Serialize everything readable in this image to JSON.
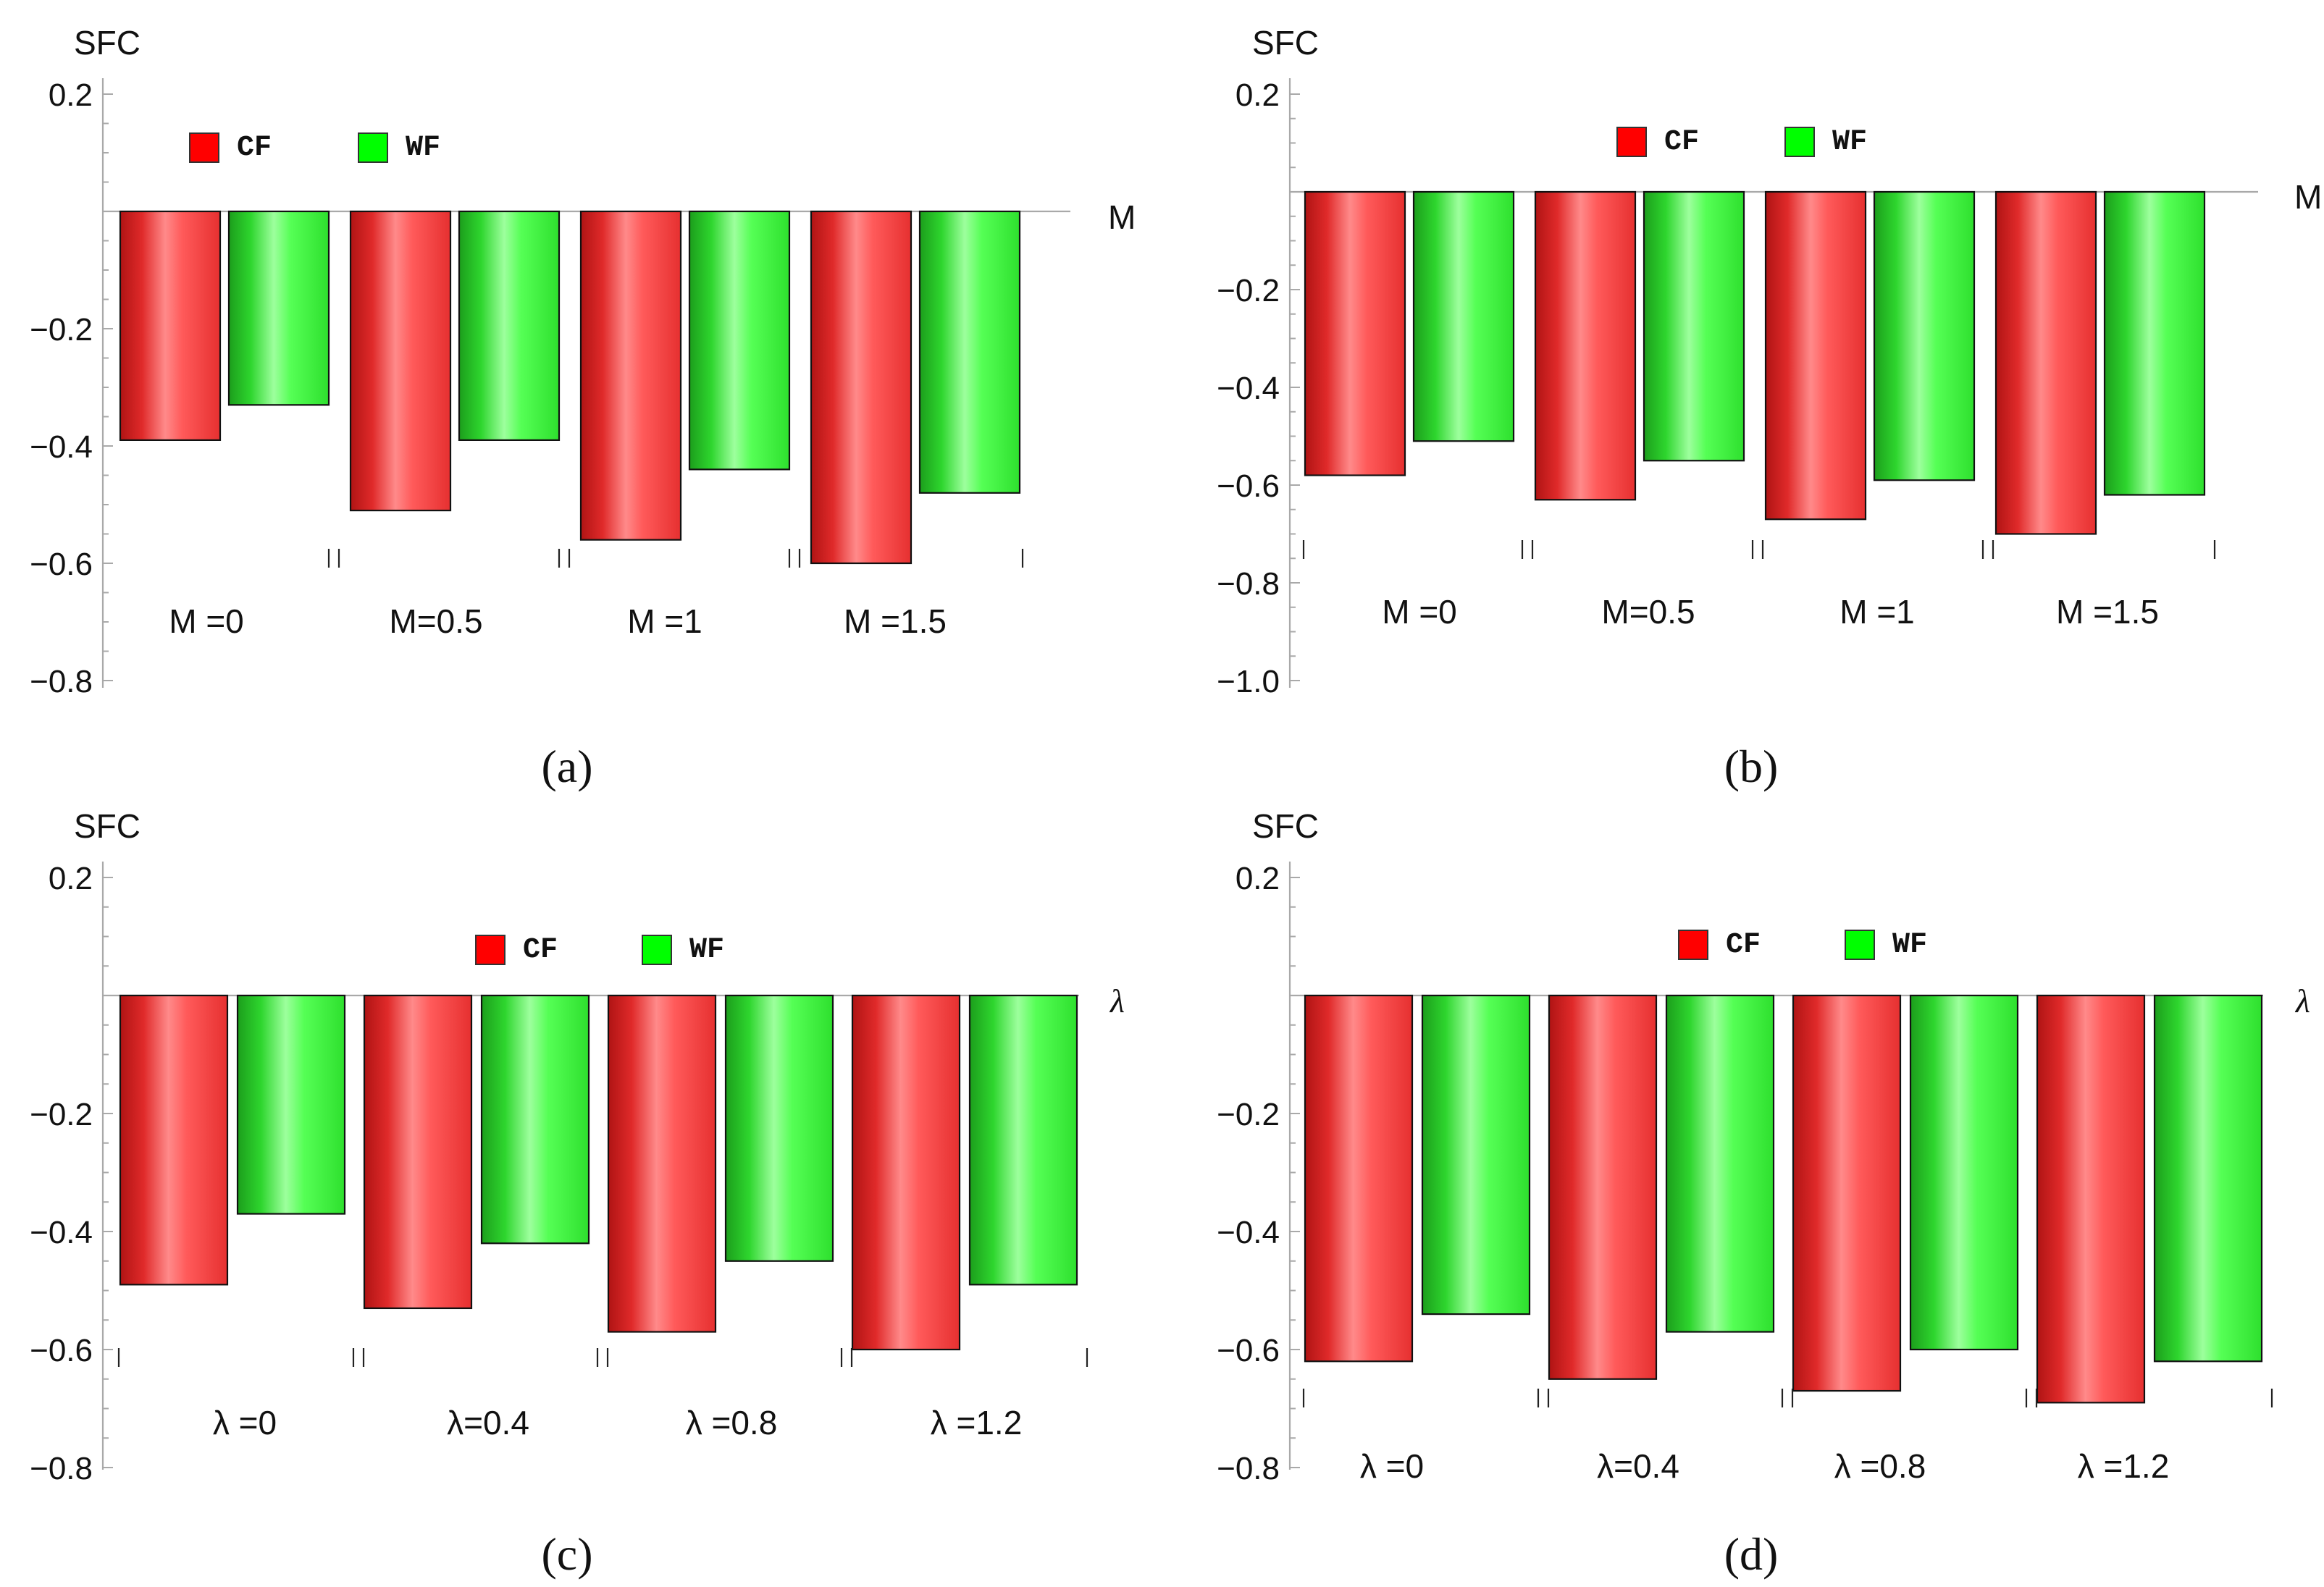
{
  "colors": {
    "cf": "#ff0000",
    "wf": "#00ff00",
    "cf_dark": "#b01414",
    "cf_light": "#ff9a9a",
    "wf_dark": "#1c9e1c",
    "wf_light": "#9dff9d",
    "axis": "#a9a9a9"
  },
  "legend": {
    "cf": "CF",
    "wf": "WF"
  },
  "chart_data": [
    {
      "id": "a",
      "type": "bar",
      "caption": "(a)",
      "ylabel": "SFC",
      "xlabel": "M",
      "ylim": [
        -0.85,
        0.22
      ],
      "yticks": [
        0.2,
        -0.2,
        -0.4,
        -0.6,
        -0.8
      ],
      "ytick_labels": [
        "0.2",
        "−0.2",
        "−0.4",
        "−0.6",
        "−0.8"
      ],
      "categories": [
        "M =0",
        "M=0.5",
        "M =1",
        "M =1.5"
      ],
      "series": [
        {
          "name": "CF",
          "values": [
            -0.39,
            -0.51,
            -0.56,
            -0.6
          ]
        },
        {
          "name": "WF",
          "values": [
            -0.33,
            -0.39,
            -0.44,
            -0.48
          ]
        }
      ]
    },
    {
      "id": "b",
      "type": "bar",
      "caption": "(b)",
      "ylabel": "SFC",
      "xlabel": "M",
      "ylim": [
        -1.03,
        0.22
      ],
      "yticks": [
        0.2,
        -0.2,
        -0.4,
        -0.6,
        -0.8,
        -1.0
      ],
      "ytick_labels": [
        "0.2",
        "−0.2",
        "−0.4",
        "−0.6",
        "−0.8",
        "−1.0"
      ],
      "categories": [
        "M =0",
        "M=0.5",
        "M =1",
        "M =1.5"
      ],
      "series": [
        {
          "name": "CF",
          "values": [
            -0.58,
            -0.63,
            -0.67,
            -0.7
          ]
        },
        {
          "name": "WF",
          "values": [
            -0.51,
            -0.55,
            -0.59,
            -0.62
          ]
        }
      ]
    },
    {
      "id": "c",
      "type": "bar",
      "caption": "(c)",
      "ylabel": "SFC",
      "xlabel": "λ",
      "ylim": [
        -0.85,
        0.22
      ],
      "yticks": [
        0.2,
        -0.2,
        -0.4,
        -0.6,
        -0.8
      ],
      "ytick_labels": [
        "0.2",
        "−0.2",
        "−0.4",
        "−0.6",
        "−0.8"
      ],
      "categories": [
        "λ =0",
        "λ=0.4",
        "λ =0.8",
        "λ =1.2"
      ],
      "series": [
        {
          "name": "CF",
          "values": [
            -0.49,
            -0.53,
            -0.57,
            -0.6
          ]
        },
        {
          "name": "WF",
          "values": [
            -0.37,
            -0.42,
            -0.45,
            -0.49
          ]
        }
      ]
    },
    {
      "id": "d",
      "type": "bar",
      "caption": "(d)",
      "ylabel": "SFC",
      "xlabel": "λ",
      "ylim": [
        -0.85,
        0.22
      ],
      "yticks": [
        0.2,
        -0.2,
        -0.4,
        -0.6,
        -0.8
      ],
      "ytick_labels": [
        "0.2",
        "−0.2",
        "−0.4",
        "−0.6",
        "−0.8"
      ],
      "categories": [
        "λ =0",
        "λ=0.4",
        "λ =0.8",
        "λ =1.2"
      ],
      "series": [
        {
          "name": "CF",
          "values": [
            -0.62,
            -0.65,
            -0.67,
            -0.69
          ]
        },
        {
          "name": "WF",
          "values": [
            -0.54,
            -0.57,
            -0.6,
            -0.62
          ]
        }
      ]
    }
  ]
}
